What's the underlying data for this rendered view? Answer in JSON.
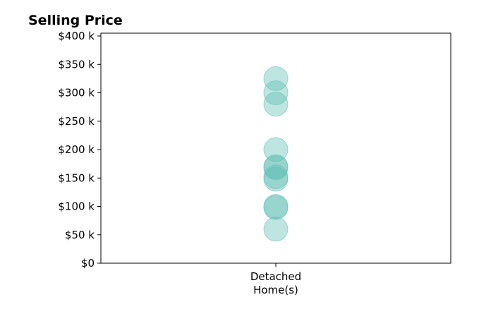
{
  "chart_data": {
    "type": "scatter",
    "title": "Selling Price",
    "xlabel": "",
    "ylabel": "",
    "categories": [
      "Detached\nHome(s)"
    ],
    "x_tick_lines": [
      "Detached",
      "Home(s)"
    ],
    "ylim": [
      0,
      405000
    ],
    "y_ticks": [
      0,
      50000,
      100000,
      150000,
      200000,
      250000,
      300000,
      350000,
      400000
    ],
    "y_tick_labels": [
      "$0",
      "$50 k",
      "$100 k",
      "$150 k",
      "$200 k",
      "$250 k",
      "$300 k",
      "$350 k",
      "$400 k"
    ],
    "points": [
      {
        "category": "Detached\nHome(s)",
        "value": 325000
      },
      {
        "category": "Detached\nHome(s)",
        "value": 300000
      },
      {
        "category": "Detached\nHome(s)",
        "value": 280000
      },
      {
        "category": "Detached\nHome(s)",
        "value": 200000
      },
      {
        "category": "Detached\nHome(s)",
        "value": 170000
      },
      {
        "category": "Detached\nHome(s)",
        "value": 168000
      },
      {
        "category": "Detached\nHome(s)",
        "value": 152000
      },
      {
        "category": "Detached\nHome(s)",
        "value": 148000
      },
      {
        "category": "Detached\nHome(s)",
        "value": 100000
      },
      {
        "category": "Detached\nHome(s)",
        "value": 98000
      },
      {
        "category": "Detached\nHome(s)",
        "value": 60000
      }
    ],
    "grid": false,
    "legend": "none",
    "marker_color": "#5fbfb5",
    "marker_opacity": 0.4
  }
}
